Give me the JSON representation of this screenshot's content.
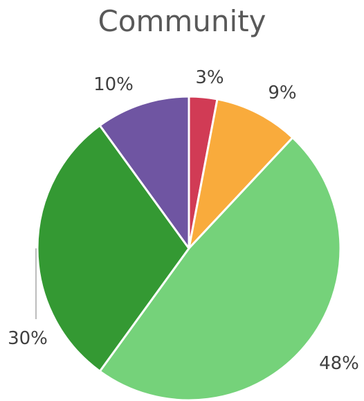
{
  "chart_data": {
    "type": "pie",
    "title": "Community",
    "start_angle_deg": 0,
    "direction": "clockwise",
    "slices": [
      {
        "value": 3,
        "label": "3%",
        "color": "#d13b55"
      },
      {
        "value": 9,
        "label": "9%",
        "color": "#f9ab3c"
      },
      {
        "value": 48,
        "label": "48%",
        "color": "#75d27a"
      },
      {
        "value": 30,
        "label": "30%",
        "color": "#349933"
      },
      {
        "value": 10,
        "label": "10%",
        "color": "#6f55a2"
      }
    ],
    "slice_border_color": "#ffffff",
    "label_color": "#404040",
    "leader_line_color": "#a6a6a6"
  }
}
